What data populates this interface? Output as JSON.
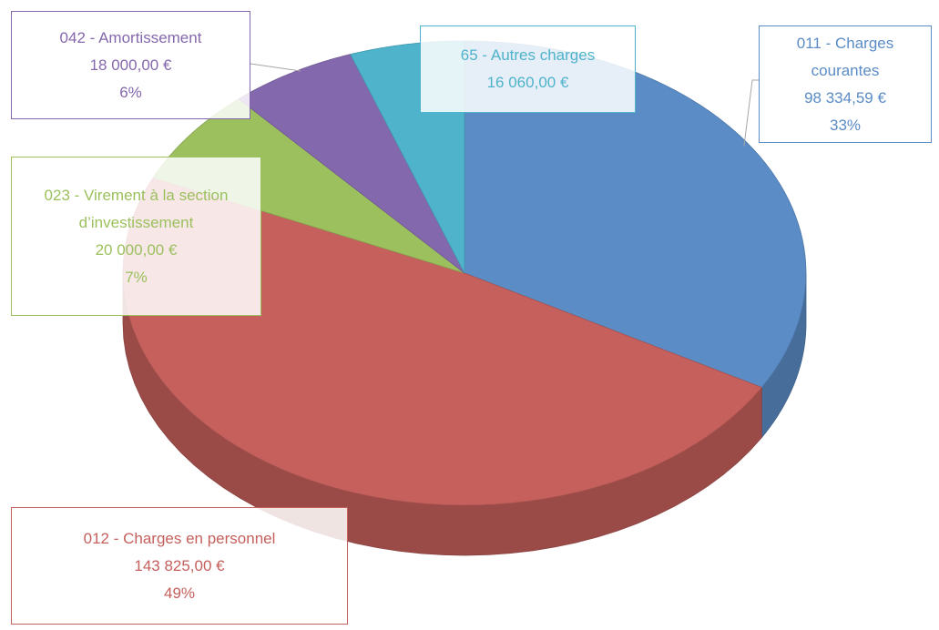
{
  "chart_data": {
    "type": "pie3d",
    "categories": [
      "011 - Charges courantes",
      "012 - Charges en personnel",
      "023 - Virement à la section d’investissement",
      "042 - Amortissement",
      "65 - Autres charges"
    ],
    "values": [
      98334.59,
      143825,
      20000,
      18000,
      16060
    ],
    "value_labels": [
      "98 334,59 €",
      "143 825,00 €",
      "20 000,00 €",
      "18 000,00 €",
      "16 060,00 €"
    ],
    "percentages": [
      33,
      49,
      7,
      6,
      null
    ],
    "percentage_labels": [
      "33%",
      "49%",
      "7%",
      "6%",
      null
    ],
    "colors": [
      "#5b8cc6",
      "#c5605c",
      "#9cc05e",
      "#8468ad",
      "#4eb3cb"
    ]
  }
}
